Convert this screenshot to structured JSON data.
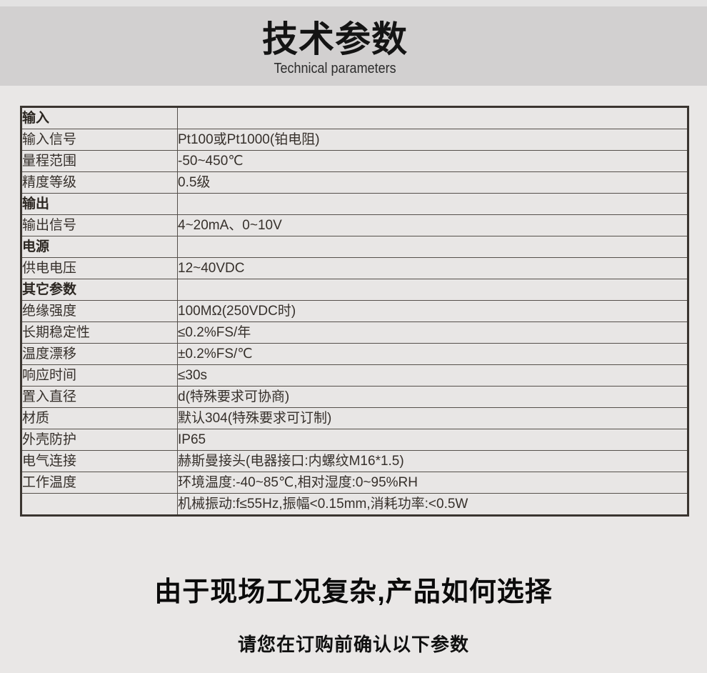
{
  "header": {
    "title_zh": "技术参数",
    "title_en": "Technical parameters"
  },
  "table": {
    "rows": [
      {
        "label": "输入",
        "value": ""
      },
      {
        "label": "输入信号",
        "value": "Pt100或Pt1000(铂电阻)"
      },
      {
        "label": "量程范围",
        "value": "-50~450℃"
      },
      {
        "label": "精度等级",
        "value": "0.5级"
      },
      {
        "label": "输出",
        "value": ""
      },
      {
        "label": "输出信号",
        "value": "4~20mA、0~10V"
      },
      {
        "label": "电源",
        "value": ""
      },
      {
        "label": "供电电压",
        "value": "12~40VDC"
      },
      {
        "label": "其它参数",
        "value": ""
      },
      {
        "label": "绝缘强度",
        "value": "100MΩ(250VDC时)"
      },
      {
        "label": "长期稳定性",
        "value": "≤0.2%FS/年"
      },
      {
        "label": "温度漂移",
        "value": "±0.2%FS/℃"
      },
      {
        "label": "响应时间",
        "value": "≤30s"
      },
      {
        "label": "置入直径",
        "value": "d(特殊要求可协商)"
      },
      {
        "label": "材质",
        "value": "默认304(特殊要求可订制)"
      },
      {
        "label": "外壳防护",
        "value": "IP65"
      },
      {
        "label": "电气连接",
        "value": "赫斯曼接头(电器接口:内螺纹M16*1.5)"
      },
      {
        "label": "工作温度",
        "value": "环境温度:-40~85℃,相对湿度:0~95%RH"
      },
      {
        "label": "",
        "value": "机械振动:f≤55Hz,振幅<0.15mm,消耗功率:<0.5W"
      }
    ]
  },
  "footer": {
    "heading": "由于现场工况复杂,产品如何选择",
    "subheading": "请您在订购前确认以下参数"
  },
  "colors": {
    "header_band": "#d2d0d0",
    "page_body": "#e9e7e6",
    "table_border": "#3a3530",
    "table_text": "#36302b"
  }
}
